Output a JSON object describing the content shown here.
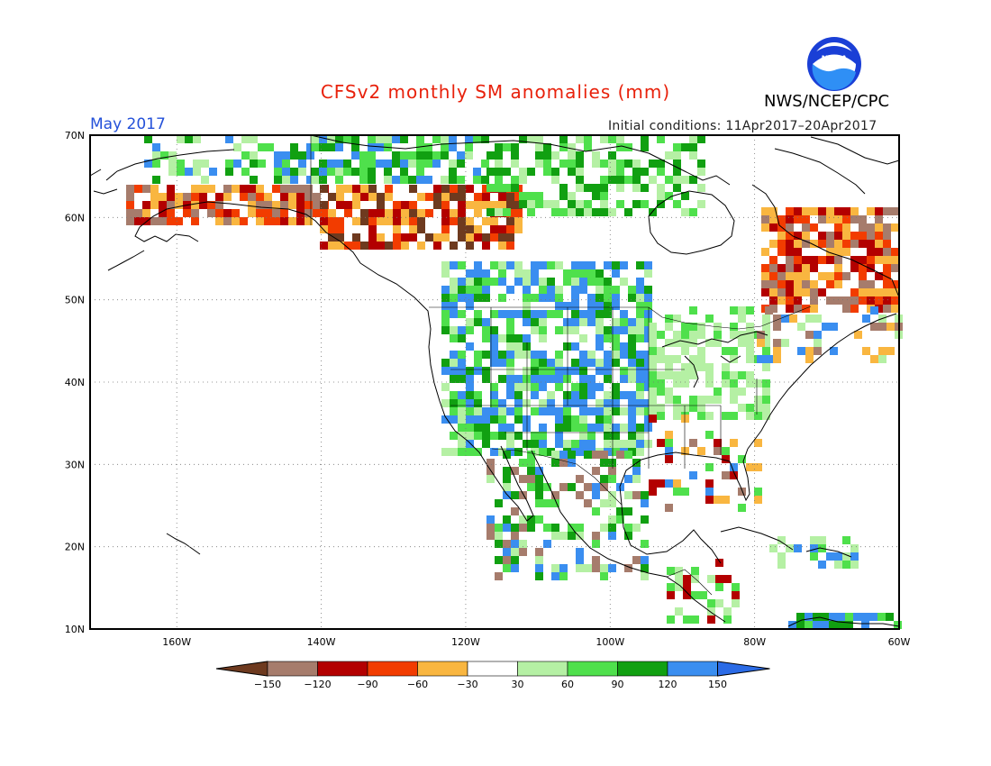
{
  "title": "CFSv2 monthly SM anomalies (mm)",
  "agency": "NWS/NCEP/CPC",
  "logo_text": "NOAA",
  "valid_month": "May 2017",
  "initial_conditions": "Initial conditions: 11Apr2017–20Apr2017",
  "map": {
    "lon_range": [
      -172,
      -60
    ],
    "lat_range": [
      10,
      70
    ],
    "lat_ticks": [
      {
        "value": 70,
        "label": "70N"
      },
      {
        "value": 60,
        "label": "60N"
      },
      {
        "value": 50,
        "label": "50N"
      },
      {
        "value": 40,
        "label": "40N"
      },
      {
        "value": 30,
        "label": "30N"
      },
      {
        "value": 20,
        "label": "20N"
      },
      {
        "value": 10,
        "label": "10N"
      }
    ],
    "lon_ticks": [
      {
        "value": -160,
        "label": "160W"
      },
      {
        "value": -140,
        "label": "140W"
      },
      {
        "value": -120,
        "label": "120W"
      },
      {
        "value": -100,
        "label": "100W"
      },
      {
        "value": -80,
        "label": "80W"
      },
      {
        "value": -60,
        "label": "60W"
      }
    ],
    "grid": "dotted"
  },
  "colorbar": {
    "labels": [
      "−150",
      "−120",
      "−90",
      "−60",
      "−30",
      "30",
      "60",
      "90",
      "120",
      "150"
    ],
    "colors": [
      "#6e3a1f",
      "#a67c6c",
      "#b30000",
      "#f23c00",
      "#f9b640",
      "#ffffff",
      "#b5f0a4",
      "#4fe04c",
      "#11a011",
      "#3a8ef0",
      "#2b6be6"
    ]
  },
  "anomaly_colors": {
    "strong_dry": "#6e3a1f",
    "dry_brown": "#a67c6c",
    "dry_darkred": "#b30000",
    "dry_red": "#f23c00",
    "dry_orange": "#f9b640",
    "wet_light": "#b5f0a4",
    "wet_green": "#4fe04c",
    "wet_dark": "#11a011",
    "wet_blue": "#3a8ef0"
  }
}
